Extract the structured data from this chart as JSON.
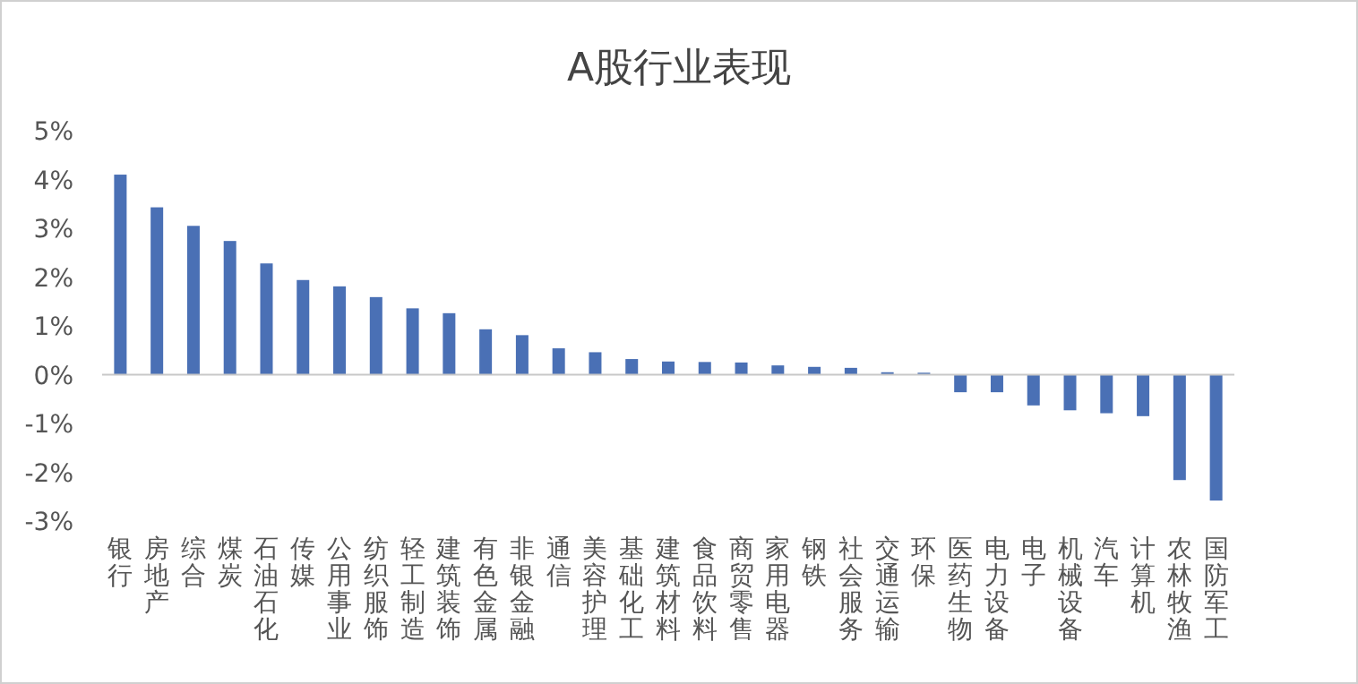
{
  "chart_data": {
    "type": "bar",
    "title": "A股行业表现",
    "categories": [
      "银行",
      "房地产",
      "综合",
      "煤炭",
      "石油石化",
      "传媒",
      "公用事业",
      "纺织服饰",
      "轻工制造",
      "建筑装饰",
      "有色金属",
      "非银金融",
      "通信",
      "美容护理",
      "基础化工",
      "建筑材料",
      "食品饮料",
      "商贸零售",
      "家用电器",
      "钢铁",
      "社会服务",
      "交通运输",
      "环保",
      "医药生物",
      "电力设备",
      "电子",
      "机械设备",
      "汽车",
      "计算机",
      "农林牧渔",
      "国防军工"
    ],
    "values": [
      4.1,
      3.43,
      3.05,
      2.74,
      2.28,
      1.94,
      1.81,
      1.59,
      1.36,
      1.26,
      0.93,
      0.81,
      0.54,
      0.46,
      0.32,
      0.27,
      0.26,
      0.25,
      0.19,
      0.16,
      0.14,
      0.05,
      0.04,
      -0.36,
      -0.36,
      -0.63,
      -0.73,
      -0.79,
      -0.85,
      -2.16,
      -2.58
    ],
    "color": "#4a70b5",
    "ylim": [
      -3,
      5
    ],
    "yticks": [
      {
        "value": -3,
        "label": "-3%"
      },
      {
        "value": -2,
        "label": "-2%"
      },
      {
        "value": -1,
        "label": "-1%"
      },
      {
        "value": 0,
        "label": "0%"
      },
      {
        "value": 1,
        "label": "1%"
      },
      {
        "value": 2,
        "label": "2%"
      },
      {
        "value": 3,
        "label": "3%"
      },
      {
        "value": 4,
        "label": "4%"
      },
      {
        "value": 5,
        "label": "5%"
      }
    ]
  }
}
